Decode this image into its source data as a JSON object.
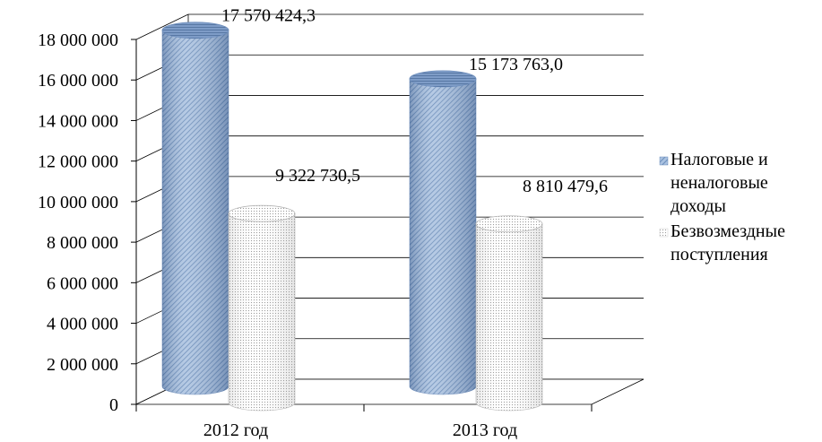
{
  "chart_data": {
    "type": "bar",
    "subtype": "3d-cylinder",
    "categories": [
      "2012 год",
      "2013 год"
    ],
    "series": [
      {
        "name": "Налоговые и неналоговые доходы",
        "legend_lines": [
          "Налоговые и",
          "неналоговые",
          "доходы"
        ],
        "values": [
          17570424.3,
          15173763.0
        ],
        "labels": [
          "17 570 424,3",
          "15 173 763,0"
        ],
        "color": "#8eaed6"
      },
      {
        "name": "Безвозмездные поступления",
        "legend_lines": [
          "Безвозмездные",
          "поступления"
        ],
        "values": [
          9322730.5,
          8810479.6
        ],
        "labels": [
          "9 322 730,5",
          "8 810 479,6"
        ],
        "color": "#ffffff"
      }
    ],
    "y_ticks": [
      "0",
      "2 000 000",
      "4 000 000",
      "6 000 000",
      "8 000 000",
      "10 000 000",
      "12 000 000",
      "14 000 000",
      "16 000 000",
      "18 000 000"
    ],
    "ylim": [
      0,
      18000000
    ],
    "grid": true,
    "legend_position": "right"
  }
}
